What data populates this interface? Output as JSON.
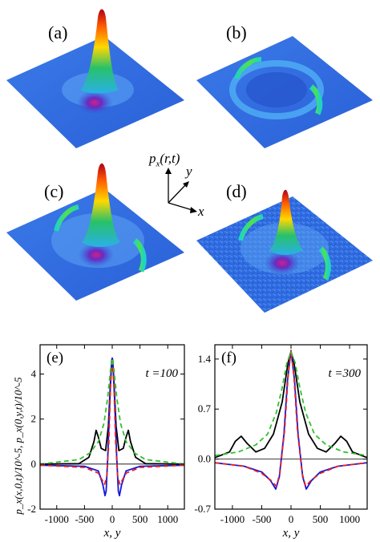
{
  "surface_panels": [
    {
      "label": "(a)"
    },
    {
      "label": "(b)"
    },
    {
      "label": "(c)"
    },
    {
      "label": "(d)"
    }
  ],
  "axes_glyph": {
    "z_label": "p",
    "z_sub": "x",
    "z_args": "(r,t)",
    "y_label": "y",
    "x_label": "x"
  },
  "colors": {
    "plane": "#2f6ae0",
    "plane_light": "#4f9bf0",
    "peak_top": "#b0001a",
    "peak_mid": "#ffd800",
    "peak_low": "#27c16a",
    "black": "#000000",
    "blue": "#1515d8",
    "red_dashed": "#e52222",
    "green_dashed": "#33c033"
  },
  "shared_ylabel": "p_x(x,0,t)/10^-5, p_x(0,y,t)/10^-5",
  "chart_data": [
    {
      "type": "line",
      "panel_label": "(e)",
      "annotation": "t =100",
      "xlabel": "x, y",
      "xlim": [
        -1300,
        1300
      ],
      "ylim": [
        -2.0,
        5.3
      ],
      "xticks": [
        -1000,
        -500,
        0,
        500,
        1000
      ],
      "yticks": [
        -2,
        0,
        2,
        4
      ],
      "series": [
        {
          "color": "black",
          "style": "solid",
          "x": [
            -1300,
            -600,
            -420,
            -330,
            -290,
            -250,
            -200,
            -120,
            -70,
            -35,
            -10,
            0,
            10,
            35,
            70,
            120,
            200,
            250,
            290,
            330,
            420,
            600,
            1300
          ],
          "y": [
            0,
            0.02,
            0.3,
            1.0,
            1.5,
            1.2,
            0.7,
            0.6,
            1.7,
            3.5,
            4.6,
            4.7,
            4.6,
            3.5,
            1.7,
            0.6,
            0.7,
            1.2,
            1.5,
            1.0,
            0.3,
            0.02,
            0
          ]
        },
        {
          "color": "blue",
          "style": "solid",
          "x": [
            -1300,
            -500,
            -250,
            -170,
            -130,
            -110,
            -80,
            -40,
            -10,
            0,
            10,
            40,
            80,
            110,
            130,
            170,
            250,
            500,
            1300
          ],
          "y": [
            -0.05,
            -0.1,
            -0.3,
            -0.9,
            -1.4,
            -1.2,
            0.4,
            3.0,
            4.6,
            4.7,
            4.6,
            3.0,
            0.4,
            -1.2,
            -1.4,
            -0.9,
            -0.3,
            -0.1,
            -0.05
          ]
        },
        {
          "color": "red",
          "style": "dashed",
          "x": [
            -1300,
            -500,
            -250,
            -140,
            -100,
            -60,
            -30,
            0,
            30,
            60,
            100,
            140,
            250,
            500,
            1300
          ],
          "y": [
            -0.05,
            -0.15,
            -0.4,
            -0.9,
            -0.6,
            1.0,
            3.5,
            4.7,
            3.5,
            1.0,
            -0.6,
            -0.9,
            -0.4,
            -0.15,
            -0.05
          ]
        },
        {
          "color": "green",
          "style": "dashed",
          "x": [
            -1300,
            -600,
            -400,
            -250,
            -150,
            -80,
            -30,
            0,
            30,
            80,
            150,
            250,
            400,
            600,
            1300
          ],
          "y": [
            0,
            0.2,
            0.5,
            1.0,
            1.8,
            3.0,
            4.2,
            4.7,
            4.2,
            3.0,
            1.8,
            1.0,
            0.5,
            0.2,
            0
          ]
        }
      ]
    },
    {
      "type": "line",
      "panel_label": "(f)",
      "annotation": "t =300",
      "xlabel": "x, y",
      "xlim": [
        -1300,
        1300
      ],
      "ylim": [
        -0.7,
        1.6
      ],
      "xticks": [
        -1000,
        -500,
        0,
        500,
        1000
      ],
      "yticks": [
        -0.7,
        0.0,
        0.7,
        1.4
      ],
      "ytick_labels": [
        "-0.7",
        "0.0",
        "0.7",
        "1.4"
      ],
      "series": [
        {
          "color": "black",
          "style": "solid",
          "x": [
            -1300,
            -1050,
            -950,
            -850,
            -750,
            -600,
            -450,
            -300,
            -150,
            -50,
            0,
            50,
            150,
            300,
            450,
            600,
            750,
            850,
            950,
            1050,
            1300
          ],
          "y": [
            0.02,
            0.1,
            0.25,
            0.32,
            0.22,
            0.1,
            0.15,
            0.35,
            0.8,
            1.35,
            1.5,
            1.35,
            0.8,
            0.35,
            0.15,
            0.1,
            0.22,
            0.32,
            0.25,
            0.1,
            0.02
          ]
        },
        {
          "color": "blue",
          "style": "solid",
          "x": [
            -1300,
            -800,
            -500,
            -350,
            -260,
            -200,
            -120,
            -60,
            0,
            60,
            120,
            200,
            260,
            350,
            500,
            800,
            1300
          ],
          "y": [
            -0.05,
            -0.1,
            -0.18,
            -0.3,
            -0.42,
            -0.25,
            0.35,
            1.1,
            1.52,
            1.1,
            0.35,
            -0.25,
            -0.42,
            -0.3,
            -0.18,
            -0.1,
            -0.05
          ]
        },
        {
          "color": "red",
          "style": "dashed",
          "x": [
            -1300,
            -800,
            -500,
            -340,
            -250,
            -190,
            -110,
            -50,
            0,
            50,
            110,
            190,
            250,
            340,
            500,
            800,
            1300
          ],
          "y": [
            -0.05,
            -0.1,
            -0.2,
            -0.3,
            -0.38,
            -0.2,
            0.4,
            1.15,
            1.52,
            1.15,
            0.4,
            -0.2,
            -0.38,
            -0.3,
            -0.2,
            -0.1,
            -0.05
          ]
        },
        {
          "color": "green",
          "style": "dashed",
          "x": [
            -1300,
            -900,
            -600,
            -400,
            -250,
            -150,
            -70,
            0,
            70,
            150,
            250,
            400,
            600,
            900,
            1300
          ],
          "y": [
            0.05,
            0.1,
            0.2,
            0.35,
            0.65,
            1.0,
            1.35,
            1.5,
            1.35,
            1.0,
            0.65,
            0.35,
            0.2,
            0.1,
            0.05
          ]
        }
      ]
    }
  ]
}
